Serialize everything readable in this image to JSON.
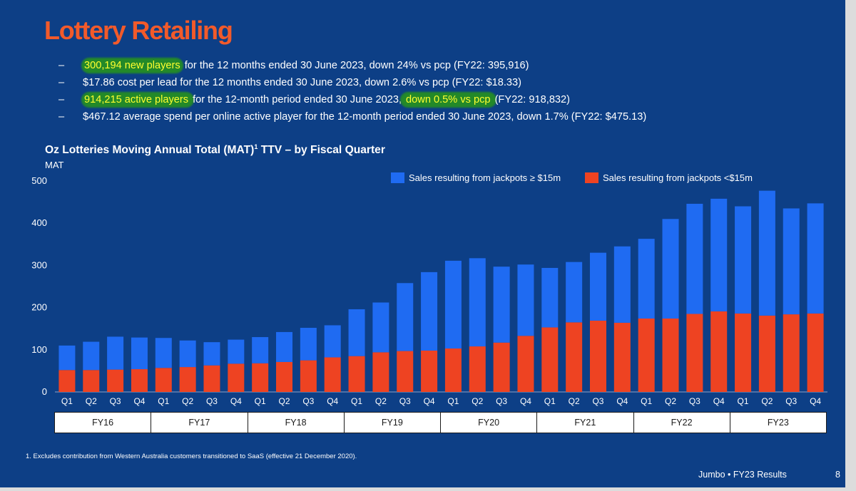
{
  "title": "Lottery Retailing",
  "bullets": [
    {
      "dash": "–",
      "highlight": "300,194 new players",
      "text": " for the 12 months ended 30 June 2023, down 24% vs pcp (FY22: 395,916)"
    },
    {
      "dash": "–",
      "text": "$17.86 cost per lead for the 12 months ended 30 June 2023, down 2.6% vs pcp (FY22: $18.33)"
    },
    {
      "dash": "–",
      "highlight": "914,215 active players ",
      "text_a": "for the 12-month period ended 30 June 2023,",
      "highlight2": " down 0.5% vs pcp ",
      "text_b": "(FY22: 918,832)"
    },
    {
      "dash": "–",
      "text": "$467.12 average spend per online active player for the 12-month period ended 30 June 2023, down 1.7% (FY22: $475.13)"
    }
  ],
  "chart_title_a": "Oz Lotteries Moving Annual Total (MAT)",
  "chart_title_sup": "1",
  "chart_title_b": " TTV – by Fiscal Quarter",
  "colors": {
    "jackpot_high": "#1f6bf2",
    "jackpot_low": "#ee4322",
    "background": "#0d3f86",
    "title": "#f25a2a"
  },
  "chart_data": {
    "type": "bar",
    "stacked": true,
    "ylabel": "MAT",
    "ylim": [
      0,
      500
    ],
    "yticks": [
      0,
      100,
      200,
      300,
      400,
      500
    ],
    "grid": false,
    "legend_position": "top-right",
    "categories": [
      "Q1",
      "Q2",
      "Q3",
      "Q4",
      "Q1",
      "Q2",
      "Q3",
      "Q4",
      "Q1",
      "Q2",
      "Q3",
      "Q4",
      "Q1",
      "Q2",
      "Q3",
      "Q4",
      "Q1",
      "Q2",
      "Q3",
      "Q4",
      "Q1",
      "Q2",
      "Q3",
      "Q4",
      "Q1",
      "Q2",
      "Q3",
      "Q4",
      "Q1",
      "Q2",
      "Q3",
      "Q4"
    ],
    "fiscal_years": [
      "FY16",
      "FY17",
      "FY18",
      "FY19",
      "FY20",
      "FY21",
      "FY22",
      "FY23"
    ],
    "series": [
      {
        "name": "Sales resulting from jackpots <$15m",
        "color": "#ee4322",
        "values": [
          52,
          52,
          53,
          54,
          57,
          59,
          63,
          67,
          68,
          71,
          75,
          82,
          85,
          94,
          97,
          98,
          103,
          108,
          117,
          133,
          153,
          165,
          169,
          164,
          174,
          174,
          185,
          191,
          186,
          181,
          184,
          186
        ]
      },
      {
        "name": "Sales resulting from jackpots ≥ $15m",
        "color": "#1f6bf2",
        "values": [
          58,
          67,
          78,
          75,
          71,
          63,
          55,
          57,
          62,
          71,
          77,
          76,
          111,
          118,
          161,
          186,
          208,
          209,
          180,
          169,
          141,
          143,
          161,
          181,
          189,
          236,
          261,
          267,
          254,
          296,
          251,
          261
        ]
      }
    ]
  },
  "footnote": "1.  Excludes contribution from Western Australia customers transitioned to SaaS (effective 21 December 2020).",
  "footer": "Jumbo • FY23 Results",
  "page_number": "8"
}
